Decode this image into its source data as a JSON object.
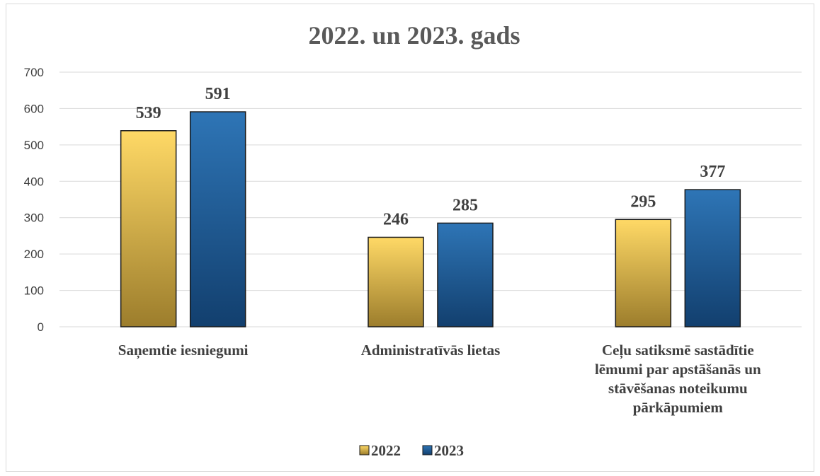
{
  "chart_data": {
    "type": "bar",
    "title": "2022. un 2023. gads",
    "categories": [
      [
        "Saņemtie iesniegumi"
      ],
      [
        "Administratīvās lietas"
      ],
      [
        "Ceļu satiksmē sastādītie",
        "lēmumi par apstāšanās un",
        "stāvēšanas noteikumu",
        "pārkāpumiem"
      ]
    ],
    "series": [
      {
        "name": "2022",
        "values": [
          539,
          246,
          295
        ],
        "color_top": "#ffd966",
        "color_bottom": "#9c7d2c"
      },
      {
        "name": "2023",
        "values": [
          591,
          285,
          377
        ],
        "color_top": "#2e75b6",
        "color_bottom": "#123f6e"
      }
    ],
    "ylim": [
      0,
      700
    ],
    "yticks": [
      0,
      100,
      200,
      300,
      400,
      500,
      600,
      700
    ],
    "grid": true,
    "legend": "bottom"
  }
}
